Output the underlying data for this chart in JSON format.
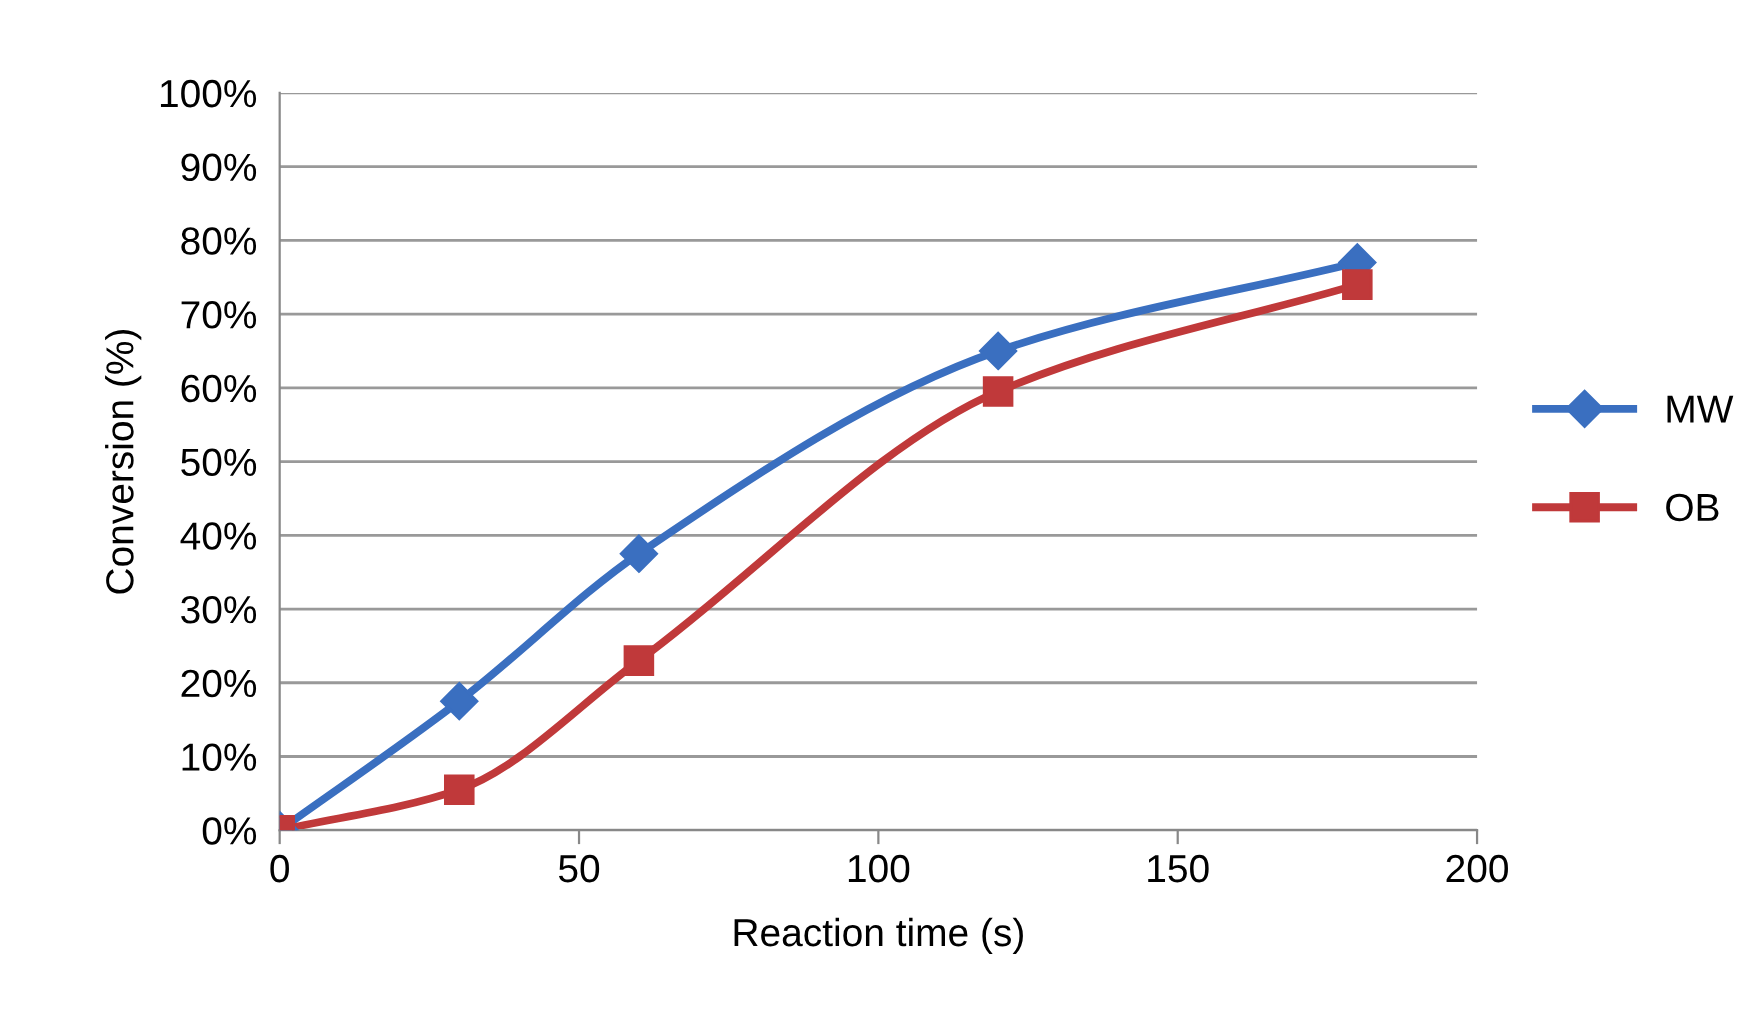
{
  "chart_data": {
    "type": "line",
    "xlabel": "Reaction time (s)",
    "ylabel": "Conversion (%)",
    "x": [
      0,
      30,
      60,
      120,
      180
    ],
    "series": [
      {
        "name": "MW",
        "color": "#3a6fc0",
        "marker": "diamond",
        "values": [
          0,
          17.5,
          37.5,
          65,
          77
        ]
      },
      {
        "name": "OB",
        "color": "#c0393a",
        "marker": "square",
        "values": [
          0,
          5.5,
          23,
          59.5,
          74
        ]
      }
    ],
    "xlim": [
      0,
      200
    ],
    "xticks": [
      0,
      50,
      100,
      150,
      200
    ],
    "ylim": [
      0,
      100
    ],
    "yticks": [
      {
        "value": 0,
        "label": "0%"
      },
      {
        "value": 10,
        "label": "10%"
      },
      {
        "value": 20,
        "label": "20%"
      },
      {
        "value": 30,
        "label": "30%"
      },
      {
        "value": 40,
        "label": "40%"
      },
      {
        "value": 50,
        "label": "50%"
      },
      {
        "value": 60,
        "label": "60%"
      },
      {
        "value": 70,
        "label": "70%"
      },
      {
        "value": 80,
        "label": "80%"
      },
      {
        "value": 90,
        "label": "90%"
      },
      {
        "value": 100,
        "label": "100%"
      }
    ],
    "grid": "y",
    "legend": "right",
    "line_style": "solid"
  }
}
